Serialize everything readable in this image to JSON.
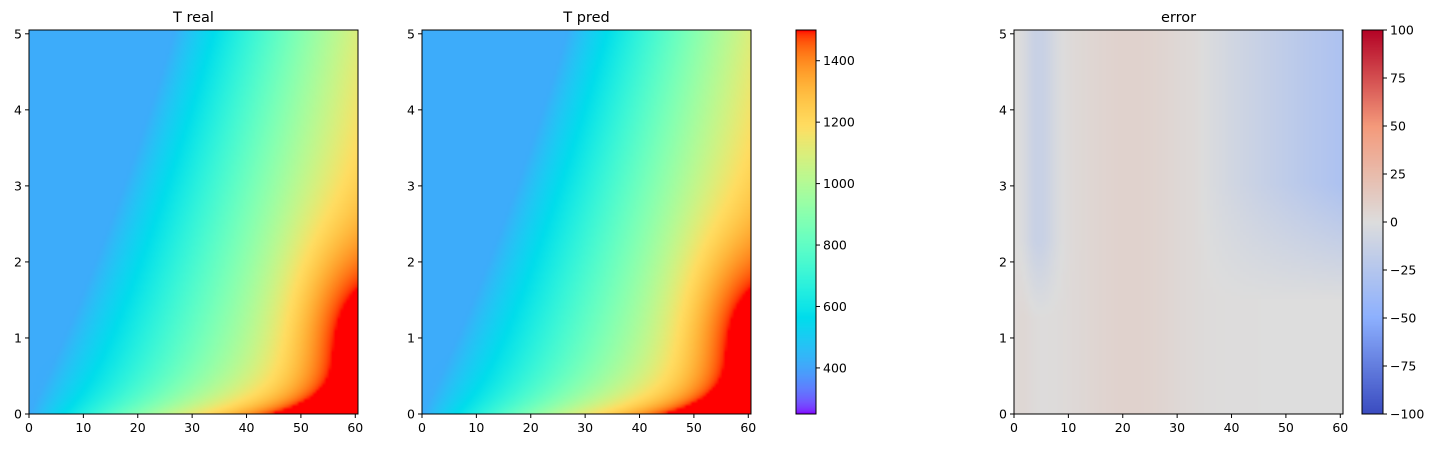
{
  "chart_data": [
    {
      "type": "heatmap",
      "title": "T real",
      "xlim": [
        0,
        60.5
      ],
      "ylim": [
        0,
        5.05
      ],
      "xticks": [
        0,
        10,
        20,
        30,
        40,
        50,
        60
      ],
      "yticks": [
        0,
        1,
        2,
        3,
        4,
        5
      ],
      "colormap": "rainbow",
      "colorbar": false
    },
    {
      "type": "heatmap",
      "title": "T pred",
      "xlim": [
        0,
        60.5
      ],
      "ylim": [
        0,
        5.05
      ],
      "xticks": [
        0,
        10,
        20,
        30,
        40,
        50,
        60
      ],
      "yticks": [
        0,
        1,
        2,
        3,
        4,
        5
      ],
      "colormap": "rainbow",
      "colorbar": true,
      "clim": [
        250,
        1500
      ],
      "colorbar_ticks": [
        400,
        600,
        800,
        1000,
        1200,
        1400
      ]
    },
    {
      "type": "heatmap",
      "title": "error",
      "xlim": [
        0,
        60.5
      ],
      "ylim": [
        0,
        5.05
      ],
      "xticks": [
        0,
        10,
        20,
        30,
        40,
        50,
        60
      ],
      "yticks": [
        0,
        1,
        2,
        3,
        4,
        5
      ],
      "colormap": "coolwarm",
      "colorbar": true,
      "clim": [
        -100,
        100
      ],
      "colorbar_ticks": [
        -100,
        -75,
        -50,
        -25,
        0,
        25,
        50,
        75,
        100
      ]
    }
  ]
}
